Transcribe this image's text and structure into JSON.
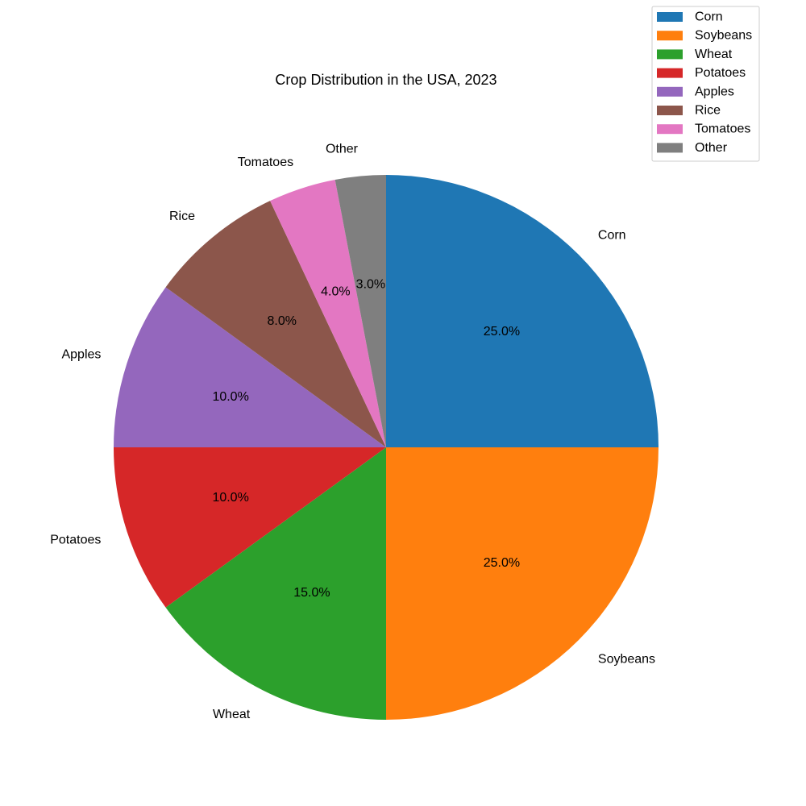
{
  "chart_data": {
    "type": "pie",
    "title": "Crop Distribution in the USA, 2023",
    "categories": [
      "Corn",
      "Soybeans",
      "Wheat",
      "Potatoes",
      "Apples",
      "Rice",
      "Tomatoes",
      "Other"
    ],
    "values": [
      25.0,
      25.0,
      15.0,
      10.0,
      10.0,
      8.0,
      4.0,
      3.0
    ],
    "percent_labels": [
      "25.0%",
      "25.0%",
      "15.0%",
      "10.0%",
      "10.0%",
      "8.0%",
      "4.0%",
      "3.0%"
    ],
    "colors": [
      "#1f77b4",
      "#ff7f0e",
      "#2ca02c",
      "#d62728",
      "#9467bd",
      "#8c564b",
      "#e377c2",
      "#7f7f7f"
    ],
    "start_angle_deg": 90,
    "direction": "clockwise",
    "legend": {
      "placement": "top-right",
      "entries": [
        "Corn",
        "Soybeans",
        "Wheat",
        "Potatoes",
        "Apples",
        "Rice",
        "Tomatoes",
        "Other"
      ]
    }
  }
}
